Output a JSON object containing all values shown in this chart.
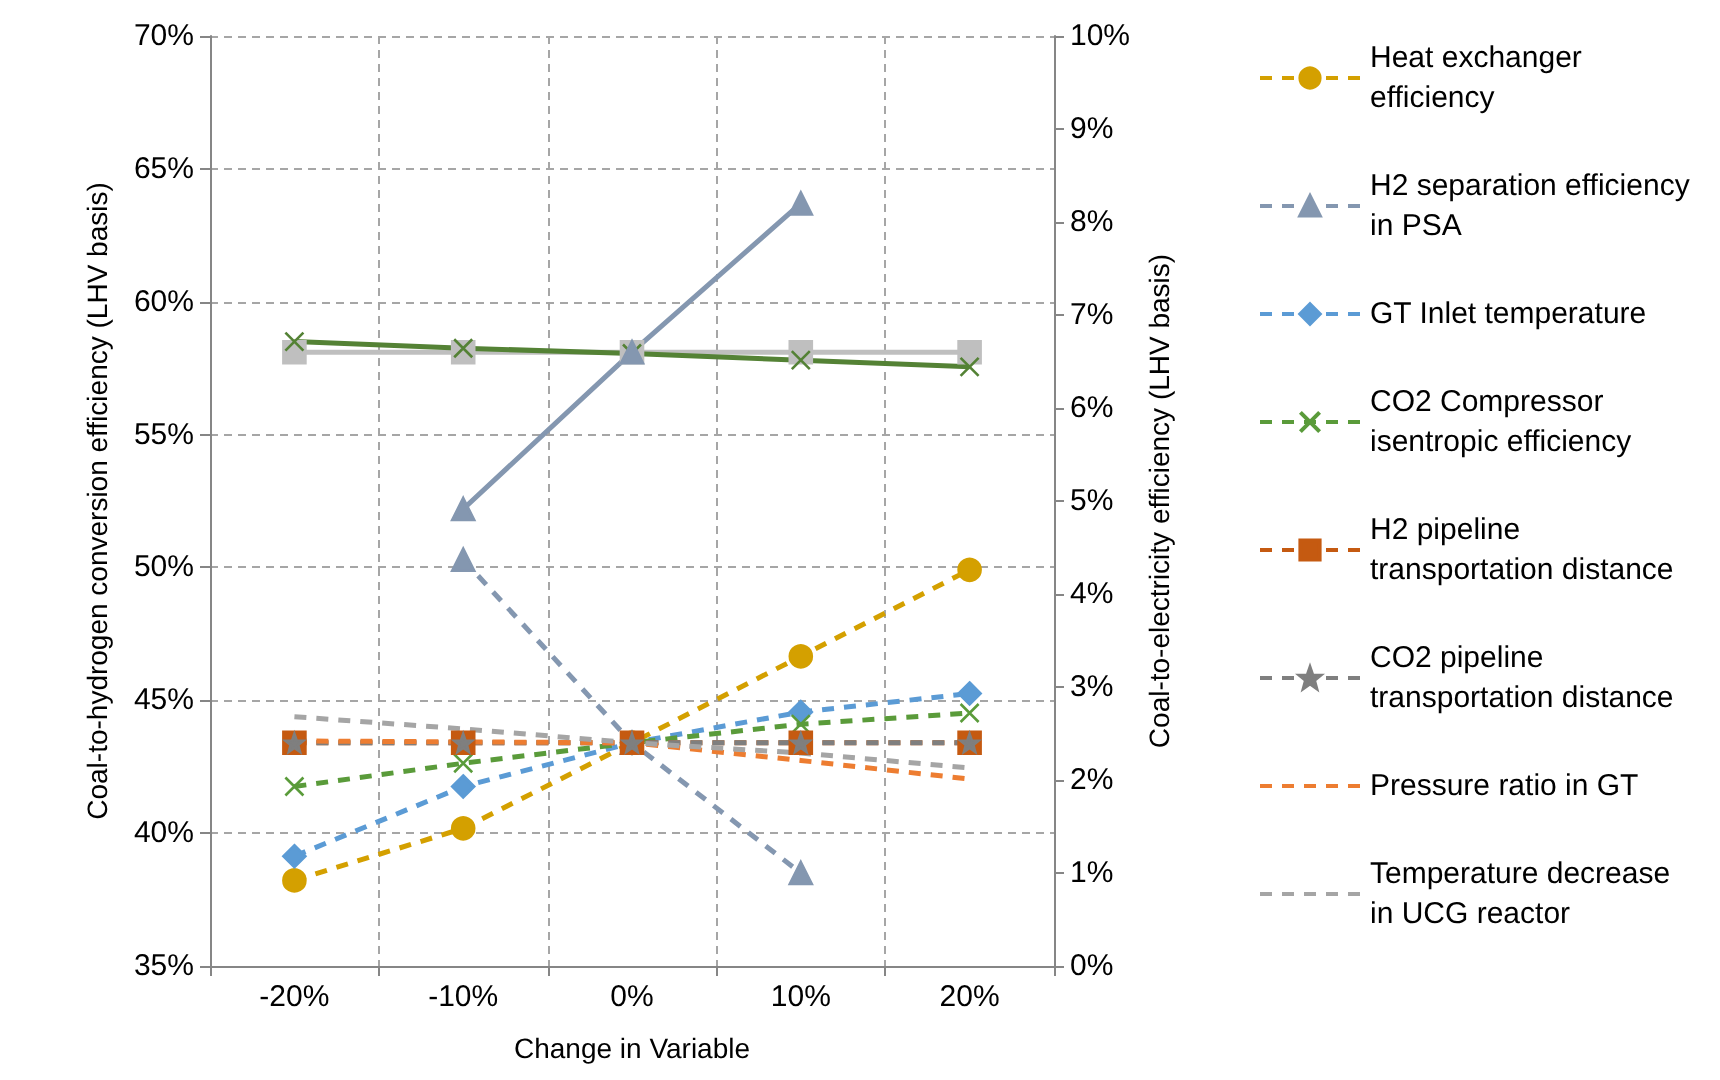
{
  "chart_data": {
    "type": "line",
    "xlabel": "Change in Variable",
    "ylabel": "Coal-to-hydrogen conversion efficiency (LHV basis)",
    "y2label": "Coal-to-electricity efficiency (LHV basis)",
    "categories": [
      "-20%",
      "-10%",
      "0%",
      "10%",
      "20%"
    ],
    "ylim": [
      35,
      70
    ],
    "yticks": [
      {
        "value": 35,
        "label": "35%"
      },
      {
        "value": 40,
        "label": "40%"
      },
      {
        "value": 45,
        "label": "45%"
      },
      {
        "value": 50,
        "label": "50%"
      },
      {
        "value": 55,
        "label": "55%"
      },
      {
        "value": 60,
        "label": "60%"
      },
      {
        "value": 65,
        "label": "65%"
      },
      {
        "value": 70,
        "label": "70%"
      }
    ],
    "y2lim": [
      0,
      10
    ],
    "y2ticks": [
      {
        "value": 0,
        "label": "0%"
      },
      {
        "value": 1,
        "label": "1%"
      },
      {
        "value": 2,
        "label": "2%"
      },
      {
        "value": 3,
        "label": "3%"
      },
      {
        "value": 4,
        "label": "4%"
      },
      {
        "value": 5,
        "label": "5%"
      },
      {
        "value": 6,
        "label": "6%"
      },
      {
        "value": 7,
        "label": "7%"
      },
      {
        "value": 8,
        "label": "8%"
      },
      {
        "value": 9,
        "label": "9%"
      },
      {
        "value": 10,
        "label": "10%"
      }
    ],
    "grid": true,
    "legend": "right",
    "series": [
      {
        "color": "#bfbfbf",
        "marker": "square",
        "line_style": "solid",
        "values": [
          58.1,
          58.1,
          58.1,
          58.1,
          58.1
        ]
      },
      {
        "color": "#548235",
        "marker": "cross",
        "line_style": "solid",
        "values": [
          58.5,
          58.25,
          58.05,
          57.8,
          57.55
        ]
      },
      {
        "color": "#8497b0",
        "marker": "triangle",
        "line_style": "solid",
        "values": [
          null,
          52.2,
          58.1,
          63.7,
          null
        ]
      },
      {
        "name": "Heat exchanger efficiency",
        "axis": "y2",
        "color": "#d4a000",
        "marker": "circle",
        "line_style": "dashed",
        "values": [
          0.92,
          1.48,
          2.4,
          3.33,
          4.26
        ]
      },
      {
        "name": "H2 separation efficiency in PSA",
        "axis": "y2",
        "color": "#8497b0",
        "marker": "triangle",
        "line_style": "dashed",
        "values": [
          null,
          4.37,
          2.4,
          1.0,
          null
        ]
      },
      {
        "name": "GT Inlet temperature",
        "axis": "y2",
        "color": "#5b9bd5",
        "marker": "diamond",
        "line_style": "dashed",
        "values": [
          1.18,
          1.93,
          2.4,
          2.73,
          2.93
        ]
      },
      {
        "name": "CO2 Compressor isentropic efficiency",
        "axis": "y2",
        "color": "#5a9b3a",
        "marker": "cross",
        "line_style": "dashed",
        "values": [
          1.93,
          2.18,
          2.4,
          2.6,
          2.72
        ]
      },
      {
        "name": "H2 pipeline transportation distance",
        "axis": "y2",
        "color": "#c55a11",
        "marker": "square",
        "line_style": "dashed",
        "values": [
          2.4,
          2.4,
          2.4,
          2.4,
          2.4
        ]
      },
      {
        "name": "CO2 pipeline transportation distance",
        "axis": "y2",
        "color": "#7f7f7f",
        "marker": "star",
        "line_style": "dashed",
        "values": [
          2.4,
          2.4,
          2.4,
          2.4,
          2.4
        ]
      },
      {
        "name": "Pressure ratio in GT",
        "axis": "y2",
        "color": "#ed7d31",
        "marker": "none",
        "line_style": "dashed",
        "values": [
          2.42,
          2.41,
          2.4,
          2.21,
          2.01
        ]
      },
      {
        "name": "Temperature decrease in UCG reactor",
        "axis": "y2",
        "color": "#a5a5a5",
        "marker": "none",
        "line_style": "dashed",
        "values": [
          2.68,
          2.55,
          2.4,
          2.29,
          2.13
        ]
      }
    ]
  }
}
